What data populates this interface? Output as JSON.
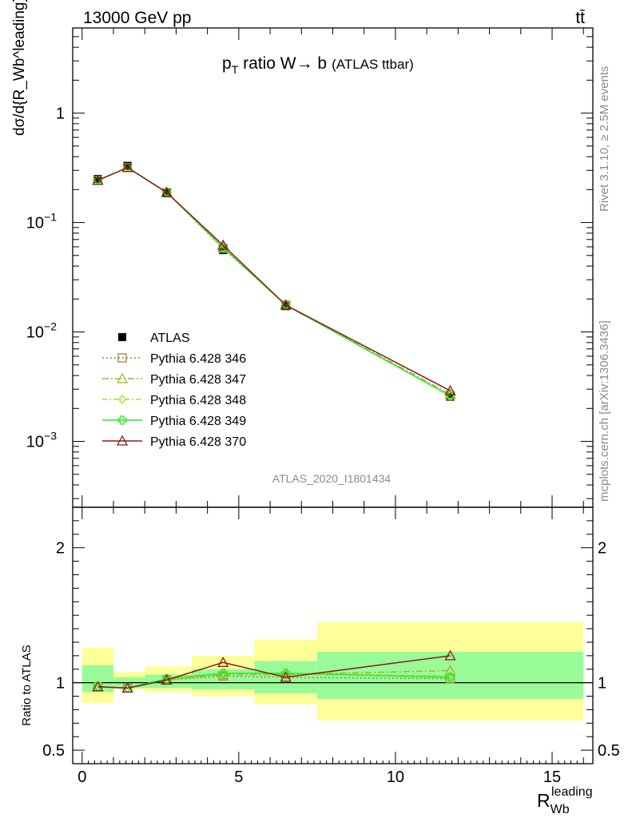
{
  "header": {
    "energy": "13000 GeV pp",
    "process": "tt̄"
  },
  "side": {
    "rivet": "Rivet 3.1.10, ≥ 2.5M events",
    "mcplots": "mcplots.cern.ch [arXiv:1306.3436]"
  },
  "watermark": "ATLAS_2020_I1801434",
  "colors": {
    "atlas": "#000000",
    "s346": "#b07a3c",
    "s347": "#a8b42a",
    "s348": "#96e62e",
    "s349": "#2ee62e",
    "s370": "#8b1a1a",
    "band_inner": "#98fb98",
    "band_outer": "#ffff99"
  },
  "chart_data": [
    {
      "type": "line",
      "title_parts": {
        "p": "p",
        "sub": "T",
        "rest": " ratio W",
        "arrow": "→",
        "b": " b",
        "tag": "(ATLAS ttbar)"
      },
      "ylabel": "dσ/d{R_Wb^leading} / σ",
      "yscale": "log",
      "ylim": [
        0.00025,
        6
      ],
      "xlim": [
        -0.3,
        16.3
      ],
      "yticks": [
        {
          "value": 1,
          "label": "1"
        },
        {
          "value": 0.1,
          "label": "10",
          "exp": "−1"
        },
        {
          "value": 0.01,
          "label": "10",
          "exp": "−2"
        },
        {
          "value": 0.001,
          "label": "10",
          "exp": "−3"
        }
      ],
      "legend_position": "left",
      "series": [
        {
          "name": "ATLAS",
          "key": "atlas",
          "marker": "square",
          "x": [
            0.5,
            1.45,
            2.7,
            4.5,
            6.5,
            11.75
          ],
          "y": [
            0.25,
            0.33,
            0.185,
            0.056,
            0.0172,
            0.00255
          ]
        },
        {
          "name": "Pythia 6.428 346",
          "key": "s346",
          "marker": "open-square",
          "dash": "2,3",
          "x": [
            0.5,
            1.45,
            2.7,
            4.5,
            6.5,
            11.75
          ],
          "y": [
            0.243,
            0.318,
            0.188,
            0.058,
            0.0176,
            0.0026
          ]
        },
        {
          "name": "Pythia 6.428 347",
          "key": "s347",
          "marker": "open-triangle",
          "dash": "8,3,2,3",
          "x": [
            0.5,
            1.45,
            2.7,
            4.5,
            6.5,
            11.75
          ],
          "y": [
            0.243,
            0.318,
            0.189,
            0.059,
            0.0177,
            0.0027
          ]
        },
        {
          "name": "Pythia 6.428 348",
          "key": "s348",
          "marker": "open-diamond",
          "dash": "6,3,2,3",
          "x": [
            0.5,
            1.45,
            2.7,
            4.5,
            6.5,
            11.75
          ],
          "y": [
            0.243,
            0.318,
            0.189,
            0.059,
            0.0177,
            0.0026
          ]
        },
        {
          "name": "Pythia 6.428 349",
          "key": "s349",
          "marker": "open-cross",
          "dash": "",
          "x": [
            0.5,
            1.45,
            2.7,
            4.5,
            6.5,
            11.75
          ],
          "y": [
            0.243,
            0.318,
            0.189,
            0.059,
            0.0176,
            0.0026
          ]
        },
        {
          "name": "Pythia 6.428 370",
          "key": "s370",
          "marker": "open-triangle",
          "dash": "",
          "x": [
            0.5,
            1.45,
            2.7,
            4.5,
            6.5,
            11.75
          ],
          "y": [
            0.243,
            0.318,
            0.188,
            0.062,
            0.0176,
            0.0029
          ]
        }
      ]
    },
    {
      "type": "line",
      "ylabel": "Ratio to ATLAS",
      "xlabel": "R",
      "xlabel_sub": "Wb",
      "xlabel_sup": "leading",
      "ylim": [
        0.4,
        2.3
      ],
      "xticks": [
        {
          "value": 0,
          "label": "0"
        },
        {
          "value": 5,
          "label": "5"
        },
        {
          "value": 10,
          "label": "10"
        },
        {
          "value": 15,
          "label": "15"
        }
      ],
      "yticks": [
        {
          "value": 0.5,
          "label": "0.5"
        },
        {
          "value": 1,
          "label": "1"
        },
        {
          "value": 2,
          "label": "2"
        }
      ],
      "bands": [
        {
          "x0": 0,
          "x1": 1,
          "inner": [
            0.93,
            1.13
          ],
          "outer": [
            0.85,
            1.26
          ]
        },
        {
          "x0": 1,
          "x1": 2,
          "inner": [
            0.96,
            1.04
          ],
          "outer": [
            0.95,
            1.08
          ]
        },
        {
          "x0": 2,
          "x1": 3.5,
          "inner": [
            0.96,
            1.06
          ],
          "outer": [
            0.93,
            1.12
          ]
        },
        {
          "x0": 3.5,
          "x1": 5.5,
          "inner": [
            0.95,
            1.1
          ],
          "outer": [
            0.9,
            1.2
          ]
        },
        {
          "x0": 5.5,
          "x1": 7.5,
          "inner": [
            0.92,
            1.16
          ],
          "outer": [
            0.84,
            1.32
          ]
        },
        {
          "x0": 7.5,
          "x1": 16,
          "inner": [
            0.88,
            1.23
          ],
          "outer": [
            0.72,
            1.45
          ]
        }
      ],
      "series": [
        {
          "name": "Pythia 6.428 346",
          "key": "s346",
          "marker": "open-square",
          "dash": "2,3",
          "x": [
            0.5,
            1.45,
            2.7,
            4.5,
            6.5,
            11.75
          ],
          "y": [
            0.97,
            0.96,
            1.02,
            1.05,
            1.04,
            1.03
          ]
        },
        {
          "name": "Pythia 6.428 347",
          "key": "s347",
          "marker": "open-triangle",
          "dash": "8,3,2,3",
          "x": [
            0.5,
            1.45,
            2.7,
            4.5,
            6.5,
            11.75
          ],
          "y": [
            0.97,
            0.96,
            1.02,
            1.06,
            1.06,
            1.09
          ]
        },
        {
          "name": "Pythia 6.428 348",
          "key": "s348",
          "marker": "open-diamond",
          "dash": "6,3,2,3",
          "x": [
            0.5,
            1.45,
            2.7,
            4.5,
            6.5,
            11.75
          ],
          "y": [
            0.97,
            0.96,
            1.02,
            1.07,
            1.07,
            1.05
          ]
        },
        {
          "name": "Pythia 6.428 349",
          "key": "s349",
          "marker": "open-cross",
          "dash": "",
          "x": [
            0.5,
            1.45,
            2.7,
            4.5,
            6.5,
            11.75
          ],
          "y": [
            0.97,
            0.96,
            1.03,
            1.07,
            1.07,
            1.04
          ]
        },
        {
          "name": "Pythia 6.428 370",
          "key": "s370",
          "marker": "open-triangle",
          "dash": "",
          "x": [
            0.5,
            1.45,
            2.7,
            4.5,
            6.5,
            11.75
          ],
          "y": [
            0.97,
            0.96,
            1.02,
            1.15,
            1.04,
            1.2
          ]
        }
      ]
    }
  ]
}
